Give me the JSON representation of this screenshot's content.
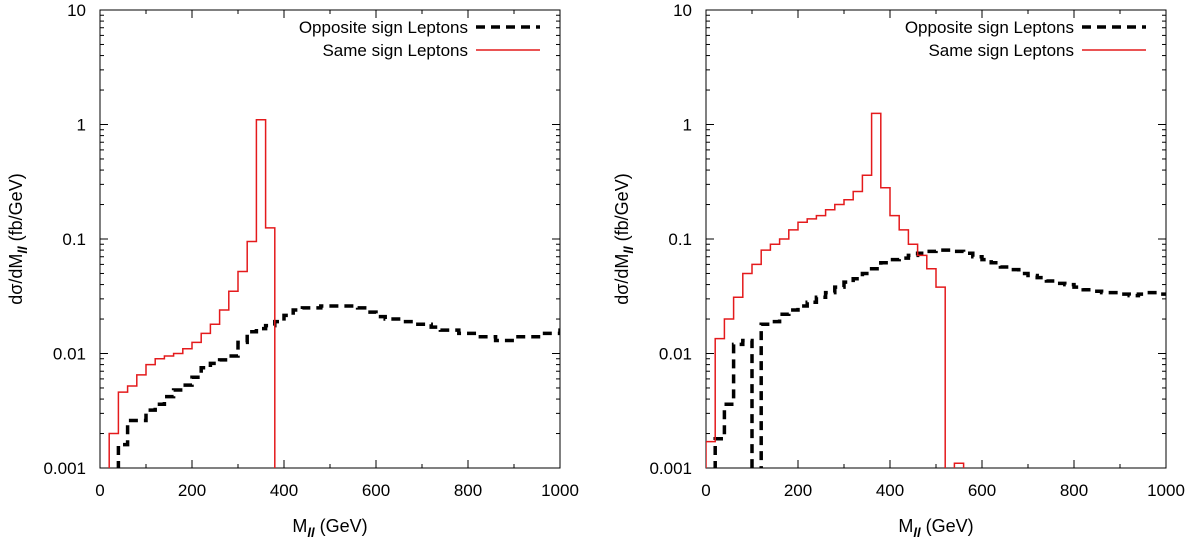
{
  "chart_data": [
    {
      "type": "line",
      "step": true,
      "yscale": "log",
      "xlim": [
        0,
        1000
      ],
      "ylim": [
        0.001,
        10
      ],
      "xticks": [
        "0",
        "200",
        "400",
        "600",
        "800",
        "1000"
      ],
      "yticks": [
        "0.001",
        "0.01",
        "0.1",
        "1",
        "10"
      ],
      "ylabel": "dσ/dM",
      "ylabel_sub": "ll",
      "ylabel_unit": " (fb/GeV)",
      "xlabel": "M",
      "xlabel_sub": "ll",
      "xlabel_unit": "   (GeV)",
      "grid": false,
      "legend_position": "top-right",
      "bin_width": 20,
      "series": [
        {
          "name": "Opposite sign Leptons",
          "style": "dashed",
          "color": "#000000",
          "x_start": 40,
          "values": [
            0.0016,
            0.0026,
            0.0026,
            0.0032,
            0.0036,
            0.0042,
            0.0048,
            0.0053,
            0.0062,
            0.0075,
            0.0082,
            0.0088,
            0.0095,
            0.0125,
            0.0155,
            0.0165,
            0.0175,
            0.019,
            0.0215,
            0.024,
            0.025,
            0.025,
            0.026,
            0.026,
            0.026,
            0.026,
            0.025,
            0.023,
            0.021,
            0.02,
            0.02,
            0.019,
            0.018,
            0.018,
            0.017,
            0.016,
            0.016,
            0.015,
            0.015,
            0.014,
            0.014,
            0.013,
            0.013,
            0.014,
            0.014,
            0.014,
            0.015,
            0.015,
            0.016
          ]
        },
        {
          "name": "Same sign Leptons",
          "style": "solid",
          "color": "#e41a1c",
          "x_start": 20,
          "values": [
            0.002,
            0.0046,
            0.0052,
            0.0065,
            0.008,
            0.009,
            0.0095,
            0.01,
            0.011,
            0.0125,
            0.015,
            0.018,
            0.024,
            0.035,
            0.052,
            0.095,
            1.1,
            0.125
          ]
        }
      ]
    },
    {
      "type": "line",
      "step": true,
      "yscale": "log",
      "xlim": [
        0,
        1000
      ],
      "ylim": [
        0.001,
        10
      ],
      "xticks": [
        "0",
        "200",
        "400",
        "600",
        "800",
        "1000"
      ],
      "yticks": [
        "0.001",
        "0.01",
        "0.1",
        "1",
        "10"
      ],
      "ylabel": "dσ/dM",
      "ylabel_sub": "ll",
      "ylabel_unit": " (fb/GeV)",
      "xlabel": "M",
      "xlabel_sub": "ll",
      "xlabel_unit": "   (GeV)",
      "grid": false,
      "legend_position": "top-right",
      "bin_width": 20,
      "series": [
        {
          "name": "Opposite sign Leptons",
          "style": "dashed",
          "color": "#000000",
          "x_start": 20,
          "values": [
            0.0018,
            0.0036,
            0.012,
            0.013,
            0.0,
            0.018,
            0.019,
            0.022,
            0.024,
            0.026,
            0.028,
            0.031,
            0.034,
            0.038,
            0.042,
            0.045,
            0.05,
            0.055,
            0.062,
            0.066,
            0.068,
            0.072,
            0.075,
            0.078,
            0.08,
            0.08,
            0.078,
            0.075,
            0.07,
            0.066,
            0.062,
            0.057,
            0.054,
            0.05,
            0.048,
            0.046,
            0.043,
            0.041,
            0.04,
            0.038,
            0.036,
            0.035,
            0.034,
            0.034,
            0.033,
            0.032,
            0.033,
            0.034,
            0.033
          ]
        },
        {
          "name": "Same sign Leptons",
          "style": "solid",
          "color": "#e41a1c",
          "x_start": 0,
          "values": [
            0.0017,
            0.0135,
            0.02,
            0.031,
            0.05,
            0.06,
            0.08,
            0.09,
            0.1,
            0.12,
            0.14,
            0.15,
            0.16,
            0.18,
            0.2,
            0.22,
            0.26,
            0.36,
            1.25,
            0.28,
            0.16,
            0.12,
            0.09,
            0.072,
            0.055,
            0.038,
            0.0,
            0.0011
          ]
        }
      ]
    }
  ]
}
